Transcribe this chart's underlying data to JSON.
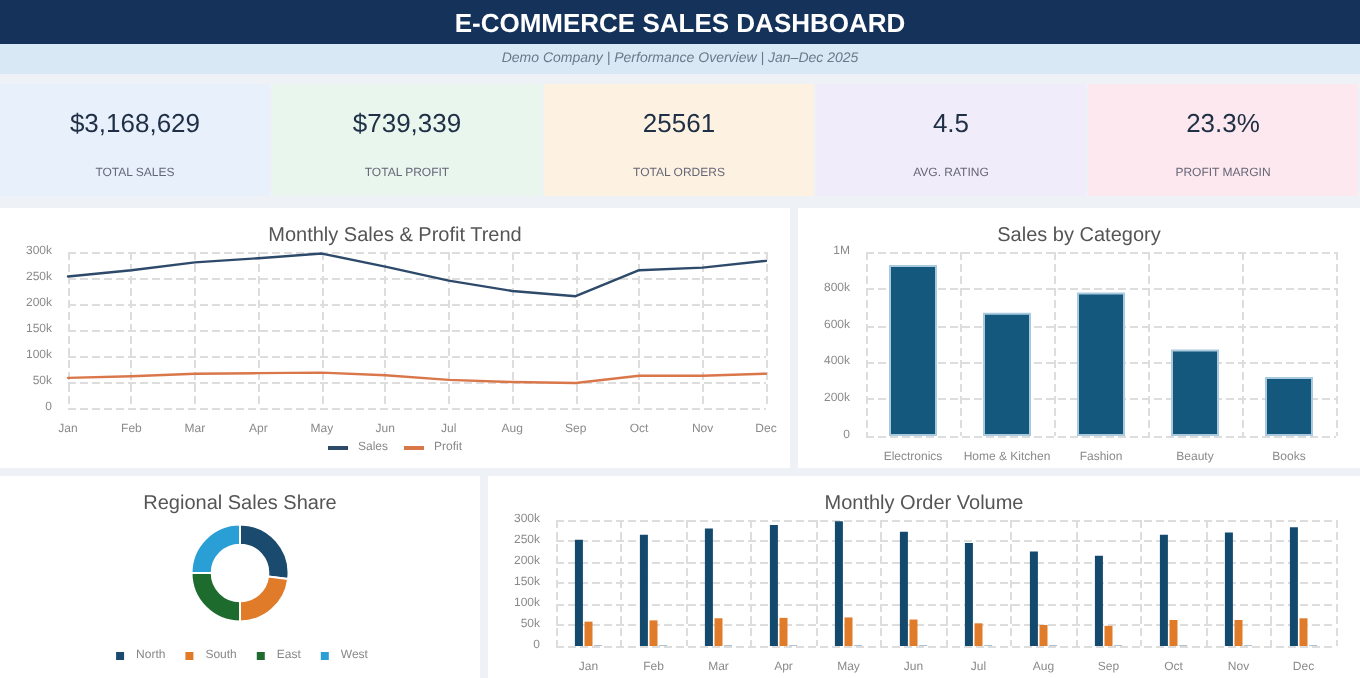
{
  "chart_data": [
    {
      "type": "other",
      "title": "E-COMMERCE SALES DASHBOARD",
      "subtitle": "Demo Company | Performance Overview | Jan–Dec 2025",
      "annotations": [
        "$3,168,629",
        "TOTAL SALES",
        "$739,339",
        "TOTAL PROFIT",
        "25561",
        "TOTAL ORDERS",
        "4.5",
        "AVG. RATING",
        "23.3%",
        "PROFIT MARGIN"
      ]
    },
    {
      "type": "line",
      "title": "Monthly Sales & Profit Trend",
      "categories": [
        "Jan",
        "Feb",
        "Mar",
        "Apr",
        "May",
        "Jun",
        "Jul",
        "Aug",
        "Sep",
        "Oct",
        "Nov",
        "Dec"
      ],
      "series": [
        {
          "name": "Sales",
          "color": "#2e4a6b",
          "values": [
            253000,
            265000,
            280000,
            288000,
            297000,
            272000,
            245000,
            225000,
            215000,
            265000,
            270000,
            283000
          ]
        },
        {
          "name": "Profit",
          "color": "#d9774a",
          "values": [
            58000,
            61000,
            66000,
            67000,
            68000,
            63000,
            54000,
            50000,
            48000,
            62000,
            62000,
            66000
          ]
        }
      ],
      "ylim": [
        0,
        300000
      ],
      "yticks": [
        {
          "value": 0,
          "label": "0"
        },
        {
          "value": 50000,
          "label": "50k"
        },
        {
          "value": 100000,
          "label": "100k"
        },
        {
          "value": 150000,
          "label": "150k"
        },
        {
          "value": 200000,
          "label": "200k"
        },
        {
          "value": 250000,
          "label": "250k"
        },
        {
          "value": 300000,
          "label": "300k"
        }
      ],
      "grid": true,
      "legend": "bottom",
      "marker": "none"
    },
    {
      "type": "bar",
      "title": "Sales by Category",
      "categories": [
        "Electronics",
        "Home & Kitchen",
        "Fashion",
        "Beauty",
        "Books"
      ],
      "values": [
        930000,
        670000,
        780000,
        470000,
        320000
      ],
      "color": "#14587d",
      "ylim": [
        0,
        1000000
      ],
      "yticks": [
        {
          "value": 0,
          "label": "0"
        },
        {
          "value": 200000,
          "label": "200k"
        },
        {
          "value": 400000,
          "label": "400k"
        },
        {
          "value": 600000,
          "label": "600k"
        },
        {
          "value": 800000,
          "label": "800k"
        },
        {
          "value": 1000000,
          "label": "1M"
        }
      ],
      "grid": true
    },
    {
      "type": "donut",
      "title": "Regional Sales Share",
      "categories": [
        "North",
        "South",
        "East",
        "West"
      ],
      "values": [
        27,
        23,
        25,
        25
      ],
      "colors": [
        "#1a4a6e",
        "#e07b2a",
        "#1e6b2e",
        "#2a9fd6"
      ],
      "legend": "bottom"
    },
    {
      "type": "bar",
      "title": "Monthly Order Volume",
      "categories": [
        "Jan",
        "Feb",
        "Mar",
        "Apr",
        "May",
        "Jun",
        "Jul",
        "Aug",
        "Sep",
        "Oct",
        "Nov",
        "Dec"
      ],
      "series": [
        {
          "color": "#14496e",
          "values": [
            253000,
            265000,
            280000,
            288000,
            297000,
            272000,
            245000,
            225000,
            215000,
            265000,
            270000,
            283000
          ]
        },
        {
          "color": "#e07b2a",
          "values": [
            58000,
            61000,
            66000,
            67000,
            68000,
            63000,
            54000,
            50000,
            48000,
            62000,
            62000,
            66000
          ]
        },
        {
          "color": "#9fb6c8",
          "values": [
            2000,
            2000,
            2000,
            2000,
            2000,
            2000,
            2000,
            2000,
            2000,
            2000,
            2000,
            2000
          ]
        }
      ],
      "ylim": [
        0,
        300000
      ],
      "yticks": [
        {
          "value": 0,
          "label": "0"
        },
        {
          "value": 50000,
          "label": "50k"
        },
        {
          "value": 100000,
          "label": "100k"
        },
        {
          "value": 150000,
          "label": "150k"
        },
        {
          "value": 200000,
          "label": "200k"
        },
        {
          "value": 250000,
          "label": "250k"
        },
        {
          "value": 300000,
          "label": "300k"
        }
      ],
      "grid": true
    }
  ]
}
